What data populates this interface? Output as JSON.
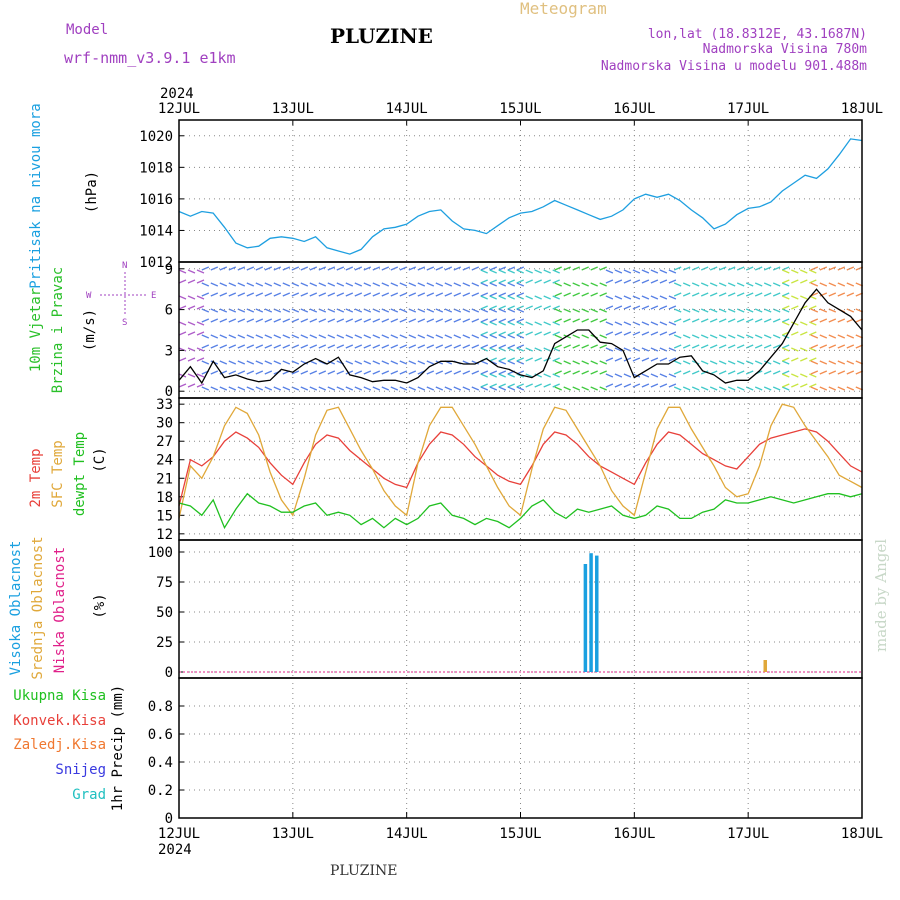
{
  "header": {
    "model_label": "Model",
    "model_name": "wrf-nmm_v3.9.1  e1km",
    "station": "PLUZINE",
    "meteogram_label": "Meteogram",
    "lonlat": "lon,lat (18.8312E, 43.1687N)",
    "elevation": "Nadmorska Visina 780m",
    "model_elevation": "Nadmorska Visina u modelu 901.488m"
  },
  "footer": {
    "station": "PLUZINE",
    "credit": "made by Angel"
  },
  "colors": {
    "pressure": "#1e9fe0",
    "wind_label": "#2ac02a",
    "temp2m": "#e8403a",
    "sfc_temp": "#e0a83a",
    "dewpt": "#20c020",
    "high_cloud": "#1aa0e0",
    "mid_cloud": "#e0a83a",
    "low_cloud": "#e0208a",
    "purple": "#a040c0",
    "convective": "#e8403a",
    "frozen": "#f07830",
    "snow": "#3a3ae0",
    "grad": "#20c0c0"
  },
  "x_axis": {
    "year": "2024",
    "labels": [
      "12JUL",
      "13JUL",
      "14JUL",
      "15JUL",
      "16JUL",
      "17JUL",
      "18JUL"
    ]
  },
  "chart_data": [
    {
      "type": "line",
      "panel": "pressure",
      "ylabel_lines": [
        "Pritisak na nivou mora",
        "(hPa)"
      ],
      "ylim": [
        1012,
        1021
      ],
      "yticks": [
        1012,
        1014,
        1016,
        1018,
        1020
      ],
      "grid": true,
      "x_days": [
        0,
        0.1,
        0.2,
        0.3,
        0.4,
        0.5,
        0.6,
        0.7,
        0.8,
        0.9,
        1.0,
        1.1,
        1.2,
        1.3,
        1.4,
        1.5,
        1.6,
        1.7,
        1.8,
        1.9,
        2.0,
        2.1,
        2.2,
        2.3,
        2.4,
        2.5,
        2.6,
        2.7,
        2.8,
        2.9,
        3.0,
        3.1,
        3.2,
        3.3,
        3.4,
        3.5,
        3.6,
        3.7,
        3.8,
        3.9,
        4.0,
        4.1,
        4.2,
        4.3,
        4.4,
        4.5,
        4.6,
        4.7,
        4.8,
        4.9,
        5.0,
        5.1,
        5.2,
        5.3,
        5.4,
        5.5,
        5.6,
        5.7,
        5.8,
        5.9,
        6.0
      ],
      "series": [
        {
          "color": "#1e9fe0",
          "values": [
            1015.2,
            1014.9,
            1015.2,
            1015.1,
            1014.2,
            1013.2,
            1012.9,
            1013.0,
            1013.5,
            1013.6,
            1013.5,
            1013.3,
            1013.6,
            1012.9,
            1012.7,
            1012.5,
            1012.8,
            1013.6,
            1014.1,
            1014.2,
            1014.4,
            1014.9,
            1015.2,
            1015.3,
            1014.6,
            1014.1,
            1014.0,
            1013.8,
            1014.3,
            1014.8,
            1015.1,
            1015.2,
            1015.5,
            1015.9,
            1015.6,
            1015.3,
            1015.0,
            1014.7,
            1014.9,
            1015.3,
            1016.0,
            1016.3,
            1016.1,
            1016.3,
            1015.9,
            1015.3,
            1014.8,
            1014.1,
            1014.4,
            1015.0,
            1015.4,
            1015.5,
            1015.8,
            1016.5,
            1017.0,
            1017.5,
            1017.3,
            1017.9,
            1018.8,
            1019.8,
            1019.7
          ]
        }
      ]
    },
    {
      "type": "line",
      "panel": "wind",
      "ylabel_lines": [
        "10m Vjetar",
        "Brzina i Pravac",
        "(m/s)"
      ],
      "compass": [
        "N",
        "E",
        "S",
        "W"
      ],
      "ylim": [
        -0.5,
        9.5
      ],
      "yticks": [
        0,
        3,
        6,
        9
      ],
      "grid": true,
      "x_days": [
        0,
        0.1,
        0.2,
        0.3,
        0.4,
        0.5,
        0.6,
        0.7,
        0.8,
        0.9,
        1.0,
        1.1,
        1.2,
        1.3,
        1.4,
        1.5,
        1.6,
        1.7,
        1.8,
        1.9,
        2.0,
        2.1,
        2.2,
        2.3,
        2.4,
        2.5,
        2.6,
        2.7,
        2.8,
        2.9,
        3.0,
        3.1,
        3.2,
        3.3,
        3.4,
        3.5,
        3.6,
        3.7,
        3.8,
        3.9,
        4.0,
        4.1,
        4.2,
        4.3,
        4.4,
        4.5,
        4.6,
        4.7,
        4.8,
        4.9,
        5.0,
        5.1,
        5.2,
        5.3,
        5.4,
        5.5,
        5.6,
        5.7,
        5.8,
        5.9,
        6.0
      ],
      "series": [
        {
          "name": "speed",
          "color": "#000000",
          "values": [
            0.8,
            1.8,
            0.6,
            2.2,
            1.0,
            1.2,
            0.9,
            0.7,
            0.8,
            1.6,
            1.4,
            2.0,
            2.4,
            2.0,
            2.5,
            1.2,
            1.0,
            0.7,
            0.8,
            0.8,
            0.6,
            1.0,
            1.8,
            2.2,
            2.2,
            2.0,
            2.0,
            2.4,
            1.8,
            1.6,
            1.2,
            1.0,
            1.5,
            3.5,
            4.0,
            4.5,
            4.5,
            3.6,
            3.5,
            3.0,
            1.0,
            1.5,
            2.0,
            2.0,
            2.5,
            2.6,
            1.5,
            1.2,
            0.6,
            0.8,
            0.8,
            1.5,
            2.5,
            3.5,
            5.0,
            6.5,
            7.5,
            6.5,
            6.0,
            5.5,
            4.5
          ]
        }
      ]
    },
    {
      "type": "line",
      "panel": "temperature",
      "ylabel_lines": [
        "2m Temp",
        "SFC Temp",
        "dewpt Temp",
        "(C)"
      ],
      "ylim": [
        11,
        34
      ],
      "yticks": [
        12,
        15,
        18,
        21,
        24,
        27,
        30,
        33
      ],
      "grid": true,
      "x_days": [
        0,
        0.1,
        0.2,
        0.3,
        0.4,
        0.5,
        0.6,
        0.7,
        0.8,
        0.9,
        1.0,
        1.1,
        1.2,
        1.3,
        1.4,
        1.5,
        1.6,
        1.7,
        1.8,
        1.9,
        2.0,
        2.1,
        2.2,
        2.3,
        2.4,
        2.5,
        2.6,
        2.7,
        2.8,
        2.9,
        3.0,
        3.1,
        3.2,
        3.3,
        3.4,
        3.5,
        3.6,
        3.7,
        3.8,
        3.9,
        4.0,
        4.1,
        4.2,
        4.3,
        4.4,
        4.5,
        4.6,
        4.7,
        4.8,
        4.9,
        5.0,
        5.1,
        5.2,
        5.3,
        5.4,
        5.5,
        5.6,
        5.7,
        5.8,
        5.9,
        6.0
      ],
      "series": [
        {
          "name": "2m Temp",
          "color": "#e8403a",
          "values": [
            16.5,
            24.0,
            23.0,
            24.5,
            27.0,
            28.5,
            27.5,
            26.0,
            23.5,
            21.5,
            20.0,
            23.5,
            26.5,
            28.0,
            27.5,
            25.5,
            24.0,
            22.5,
            21.0,
            20.0,
            19.5,
            23.5,
            26.5,
            28.5,
            28.0,
            26.5,
            24.5,
            23.0,
            21.5,
            20.5,
            20.0,
            23.0,
            26.5,
            28.5,
            28.0,
            26.5,
            24.5,
            23.0,
            22.0,
            21.0,
            20.0,
            23.5,
            26.5,
            28.5,
            28.0,
            26.5,
            25.0,
            24.0,
            23.0,
            22.5,
            24.5,
            26.5,
            27.5,
            28.0,
            28.5,
            29.0,
            28.5,
            27.0,
            25.0,
            23.0,
            22.0
          ]
        },
        {
          "name": "SFC Temp",
          "color": "#e0a83a",
          "values": [
            14.5,
            23.0,
            21.0,
            24.5,
            29.5,
            32.5,
            31.5,
            28.0,
            22.0,
            17.5,
            15.0,
            21.0,
            28.0,
            32.0,
            32.5,
            29.0,
            25.5,
            22.5,
            19.0,
            16.5,
            15.0,
            23.5,
            29.5,
            32.5,
            32.5,
            29.5,
            26.5,
            23.0,
            19.5,
            16.5,
            15.0,
            22.5,
            29.0,
            32.5,
            32.0,
            29.0,
            26.0,
            23.0,
            19.0,
            16.5,
            15.0,
            22.0,
            29.0,
            32.5,
            32.5,
            29.0,
            26.0,
            23.0,
            19.5,
            18.0,
            18.5,
            23.0,
            29.5,
            33.0,
            32.5,
            29.5,
            27.0,
            24.5,
            21.5,
            20.5,
            19.5
          ]
        },
        {
          "name": "dewpt Temp",
          "color": "#20c020",
          "values": [
            17.0,
            16.5,
            15.0,
            17.5,
            13.0,
            16.0,
            18.5,
            17.0,
            16.5,
            15.5,
            15.5,
            16.5,
            17.0,
            15.0,
            15.5,
            15.0,
            13.5,
            14.5,
            13.0,
            14.5,
            13.5,
            14.5,
            16.5,
            17.0,
            15.0,
            14.5,
            13.5,
            14.5,
            14.0,
            13.0,
            14.5,
            16.5,
            17.5,
            15.5,
            14.5,
            16.0,
            15.5,
            16.0,
            16.5,
            15.0,
            14.5,
            15.0,
            16.5,
            16.0,
            14.5,
            14.5,
            15.5,
            16.0,
            17.5,
            17.0,
            17.0,
            17.5,
            18.0,
            17.5,
            17.0,
            17.5,
            18.0,
            18.5,
            18.5,
            18.0,
            18.5
          ]
        }
      ]
    },
    {
      "type": "bar",
      "panel": "clouds",
      "ylabel_lines": [
        "Visoka Oblacnost",
        "Srednja Oblacnost",
        "Niska Oblacnost",
        "(%)"
      ],
      "ylim": [
        -5,
        110
      ],
      "yticks": [
        0,
        25,
        50,
        75,
        100
      ],
      "grid": true,
      "series": [
        {
          "name": "Visoka Oblacnost",
          "color": "#1aa0e0",
          "bars": [
            {
              "x": 3.57,
              "value": 90
            },
            {
              "x": 3.62,
              "value": 99
            },
            {
              "x": 3.67,
              "value": 97
            }
          ]
        },
        {
          "name": "Srednja Oblacnost",
          "color": "#e0a83a",
          "bars": [
            {
              "x": 5.15,
              "value": 10
            }
          ]
        },
        {
          "name": "Niska Oblacnost",
          "color": "#e0208a",
          "bars": []
        }
      ]
    },
    {
      "type": "line",
      "panel": "precip",
      "ylabel_lines": [
        "1hr Precip (mm)"
      ],
      "legend": [
        "Ukupna Kisa",
        "Konvek.Kisa",
        "Zaledj.Kisa",
        "Snijeg",
        "Grad"
      ],
      "legend_colors": [
        "#20c020",
        "#e8403a",
        "#f07830",
        "#3a3ae0",
        "#20c0c0"
      ],
      "ylim": [
        0,
        1.0
      ],
      "yticks": [
        0,
        0.2,
        0.4,
        0.6,
        0.8
      ],
      "grid": true,
      "series": []
    }
  ]
}
